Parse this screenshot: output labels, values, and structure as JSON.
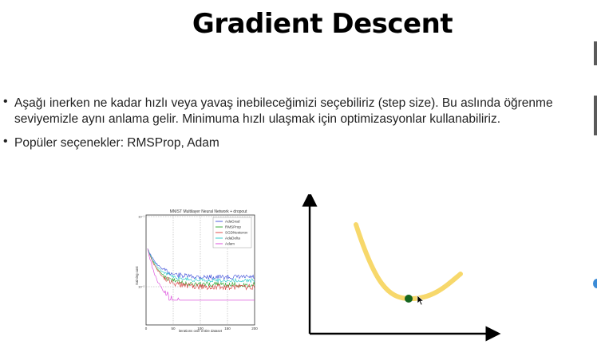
{
  "slide": {
    "title": "Gradient Descent",
    "bullets": [
      "Aşağı inerken ne kadar hızlı veya yavaş inebileceğimizi seçebiliriz (step size). Bu aslında öğrenme\nseviyemizle aynı anlama gelir. Minimuma hızlı ulaşmak için optimizasyonlar kullanabiliriz.",
      "Popüler seçenekler: RMSProp, Adam"
    ]
  },
  "chart_data": [
    {
      "type": "line",
      "title": "MNIST Multilayer Neural Network + dropout",
      "xlabel": "iterations over entire dataset",
      "ylabel": "training cost",
      "xlim": [
        0,
        200
      ],
      "x_ticks": [
        "0",
        "50",
        "100",
        "150",
        "200"
      ],
      "y_ticks": [
        "10⁻¹",
        "10⁻²"
      ],
      "y_scale": "log",
      "grid": true,
      "legend": "top-right",
      "series": [
        {
          "name": "AdaGrad",
          "color": "#3b4bd8",
          "level": 0.7,
          "noise": 0.03
        },
        {
          "name": "RMSProp",
          "color": "#28a428",
          "level": 0.79,
          "noise": 0.03
        },
        {
          "name": "SGDNesterov",
          "color": "#d83b3b",
          "level": 0.82,
          "noise": 0.035
        },
        {
          "name": "AdaDelta",
          "color": "#22c8c8",
          "level": 0.74,
          "noise": 0.025
        },
        {
          "name": "Adam",
          "color": "#d83bd8",
          "level": 1.05,
          "noise": 0.05
        }
      ]
    },
    {
      "type": "line",
      "curve_color": "#f7d86b",
      "point_color": "#15651f"
    }
  ]
}
